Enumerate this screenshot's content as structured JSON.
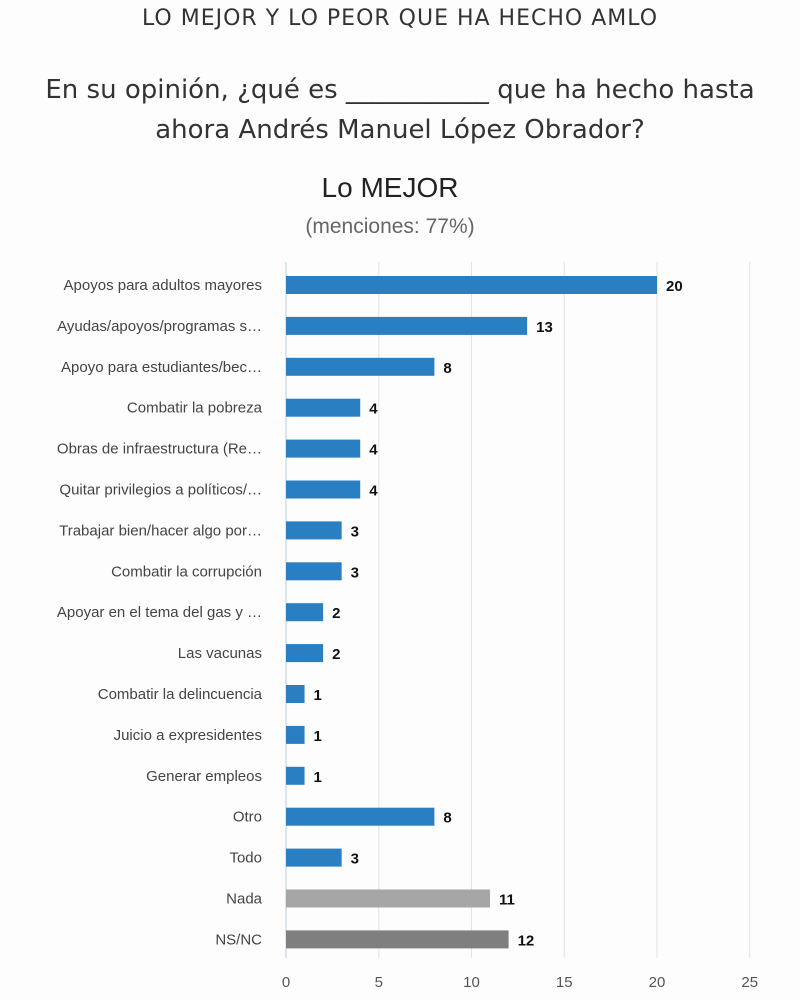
{
  "header": {
    "title": "LO MEJOR Y LO PEOR QUE HA HECHO AMLO",
    "question_line1": "En su opinión, ¿qué es ___________ que ha hecho hasta",
    "question_line2": "ahora Andrés Manuel López Obrador?"
  },
  "chart_data": {
    "type": "bar",
    "orientation": "horizontal",
    "title": "Lo MEJOR",
    "subtitle": "(menciones: 77%)",
    "categories": [
      "Apoyos para adultos mayores",
      "Ayudas/apoyos/programas s…",
      "Apoyo para estudiantes/bec…",
      "Combatir la pobreza",
      "Obras de infraestructura (Re…",
      "Quitar privilegios a políticos/…",
      "Trabajar bien/hacer algo por…",
      "Combatir la corrupción",
      "Apoyar en el tema del gas y …",
      "Las vacunas",
      "Combatir la delincuencia",
      "Juicio a expresidentes",
      "Generar empleos",
      "Otro",
      "Todo",
      "Nada",
      "NS/NC"
    ],
    "values": [
      20,
      13,
      8,
      4,
      4,
      4,
      3,
      3,
      2,
      2,
      1,
      1,
      1,
      8,
      3,
      11,
      12
    ],
    "colors": [
      "#2a7fc3",
      "#2a7fc3",
      "#2a7fc3",
      "#2a7fc3",
      "#2a7fc3",
      "#2a7fc3",
      "#2a7fc3",
      "#2a7fc3",
      "#2a7fc3",
      "#2a7fc3",
      "#2a7fc3",
      "#2a7fc3",
      "#2a7fc3",
      "#2a7fc3",
      "#2a7fc3",
      "#a6a6a6",
      "#7f7f7f"
    ],
    "xlim": [
      0,
      25
    ],
    "xticks": [
      0,
      5,
      10,
      15,
      20,
      25
    ],
    "grid": true,
    "xlabel": "",
    "ylabel": ""
  }
}
